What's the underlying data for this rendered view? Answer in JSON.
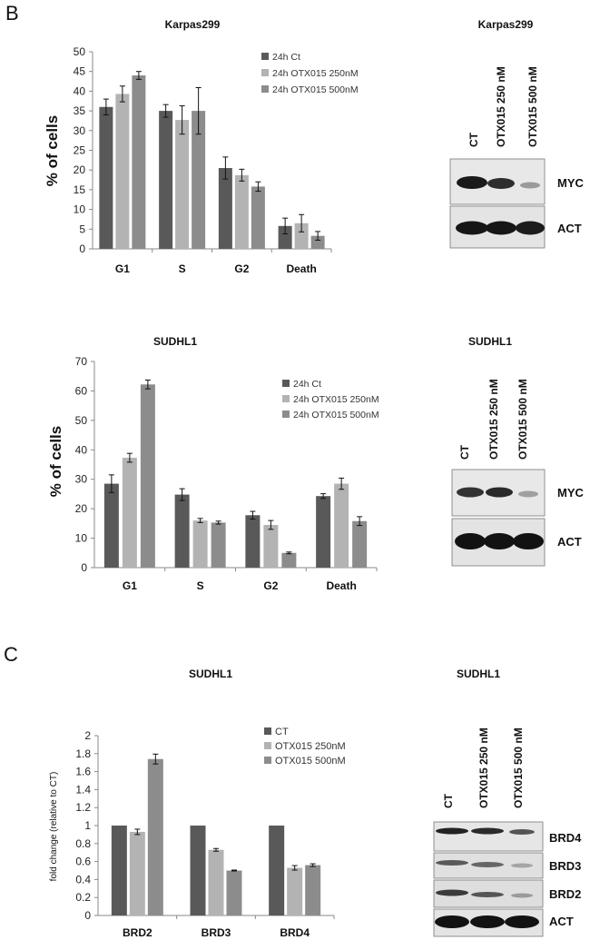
{
  "panels": {
    "b": "B",
    "c": "C"
  },
  "colors": {
    "ct": "#595959",
    "mid": "#b3b3b3",
    "high": "#8c8c8c",
    "axis": "#888888",
    "blot_bg": "#e9e9e9",
    "band": "#1a1a1a"
  },
  "blots": [
    {
      "title": "Karpas299",
      "lanes": [
        "CT",
        "OTX015 250 nM",
        "OTX015 500 nM"
      ],
      "proteins": [
        "MYC",
        "ACT"
      ]
    },
    {
      "title": "SUDHL1",
      "lanes": [
        "CT",
        "OTX015 250 nM",
        "OTX015 500 nM"
      ],
      "proteins": [
        "MYC",
        "ACT"
      ]
    },
    {
      "title": "SUDHL1",
      "lanes": [
        "CT",
        "OTX015 250 nM",
        "OTX015 500 nM"
      ],
      "proteins": [
        "BRD4",
        "BRD3",
        "BRD2",
        "ACT"
      ]
    }
  ],
  "chart_data": [
    {
      "type": "bar",
      "title": "Karpas299",
      "ylabel": "% of cells",
      "xlabel": "",
      "ylim": [
        0,
        50
      ],
      "yticks": [
        0,
        5,
        10,
        15,
        20,
        25,
        30,
        35,
        40,
        45,
        50
      ],
      "categories": [
        "G1",
        "S",
        "G2",
        "Death"
      ],
      "legend_position": "top-right",
      "series": [
        {
          "name": "24h Ct",
          "values": [
            36,
            35,
            20.5,
            5.8
          ],
          "errors": [
            2,
            1.6,
            2.8,
            2
          ]
        },
        {
          "name": "24h OTX015 250nM",
          "values": [
            39.3,
            32.7,
            18.7,
            6.5
          ],
          "errors": [
            2,
            3.6,
            1.5,
            2.2
          ]
        },
        {
          "name": "24h OTX015 500nM",
          "values": [
            44,
            35,
            15.8,
            3.3
          ],
          "errors": [
            1,
            5.9,
            1.2,
            1.1
          ]
        }
      ]
    },
    {
      "type": "bar",
      "title": "SUDHL1",
      "ylabel": "% of cells",
      "xlabel": "",
      "ylim": [
        0,
        70
      ],
      "yticks": [
        0,
        10,
        20,
        30,
        40,
        50,
        60,
        70
      ],
      "categories": [
        "G1",
        "S",
        "G2",
        "Death"
      ],
      "legend_position": "top-right",
      "series": [
        {
          "name": "24h Ct",
          "values": [
            28.5,
            24.8,
            17.8,
            24.3
          ],
          "errors": [
            3,
            2,
            1.3,
            0.8
          ]
        },
        {
          "name": "24h OTX015 250nM",
          "values": [
            37.3,
            16,
            14.5,
            28.5
          ],
          "errors": [
            1.5,
            0.7,
            1.5,
            1.9
          ]
        },
        {
          "name": "24h OTX015 500nM",
          "values": [
            62.2,
            15.3,
            5,
            15.8
          ],
          "errors": [
            1.5,
            0.5,
            0.3,
            1.5
          ]
        }
      ]
    },
    {
      "type": "bar",
      "title": "SUDHL1",
      "ylabel": "fold change (relative to CT)",
      "xlabel": "",
      "ylim": [
        0,
        2
      ],
      "yticks": [
        "0",
        "0.2",
        "0.4",
        "0.6",
        "0.8",
        "1",
        "1.2",
        "1.4",
        "1.6",
        "1.8",
        "2"
      ],
      "categories": [
        "BRD2",
        "BRD3",
        "BRD4"
      ],
      "legend_position": "top-right",
      "series": [
        {
          "name": "CT",
          "values": [
            1,
            1,
            1
          ],
          "errors": [
            0,
            0,
            0
          ]
        },
        {
          "name": "OTX015 250nM",
          "values": [
            0.93,
            0.73,
            0.53
          ],
          "errors": [
            0.03,
            0.015,
            0.025
          ]
        },
        {
          "name": "OTX015 500nM",
          "values": [
            1.74,
            0.5,
            0.56
          ],
          "errors": [
            0.055,
            0.005,
            0.015
          ]
        }
      ]
    }
  ]
}
